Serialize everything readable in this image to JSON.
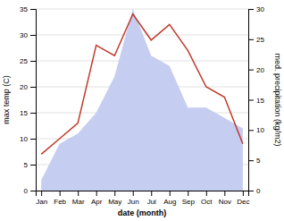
{
  "chart_data": {
    "type": "line",
    "xlabel": "date (month)",
    "ylabel": "max temp (C)",
    "y2label": "med. precipitation (kg/m2)",
    "categories": [
      "Jan",
      "Feb",
      "Mar",
      "Apr",
      "May",
      "Jun",
      "Jul",
      "Aug",
      "Sep",
      "Oct",
      "Nov",
      "Dec"
    ],
    "series": [
      {
        "type": "area",
        "color": "#c5cdf0",
        "values": [
          2,
          9,
          11,
          15,
          22,
          35,
          26,
          24,
          16,
          16,
          14,
          12
        ]
      },
      {
        "type": "line",
        "color": "#c0392b",
        "values": [
          7,
          10,
          13,
          28,
          26,
          34,
          29,
          32,
          27,
          20,
          18,
          9
        ]
      }
    ],
    "ylim": [
      0,
      35
    ],
    "yticks": [
      0,
      5,
      10,
      15,
      20,
      25,
      30,
      35
    ],
    "y2lim": [
      0,
      30
    ],
    "y2ticks": [
      0,
      5,
      10,
      15,
      20,
      25,
      30
    ],
    "grid": true
  }
}
